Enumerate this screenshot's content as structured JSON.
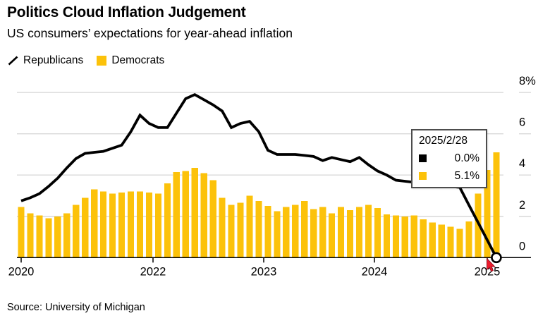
{
  "header": {
    "title": "Politics Cloud Inflation Judgement",
    "subtitle": "US consumers’ expectations for year-ahead inflation"
  },
  "legend": [
    {
      "label": "Republicans",
      "marker": "line-stroke",
      "color": "#000000"
    },
    {
      "label": "Democrats",
      "marker": "square",
      "color": "#FCC20A"
    }
  ],
  "chart_data": {
    "type": "combo",
    "title": "Politics Cloud Inflation Judgement",
    "subtitle": "US consumers’ expectations for year-ahead inflation",
    "ylabel": "",
    "xlabel": "",
    "ylim": [
      0,
      8
    ],
    "grid": "horizontal",
    "y_axis": {
      "side": "right",
      "ticks": [
        {
          "label": "8%",
          "value": 8
        },
        {
          "label": "6",
          "value": 6
        },
        {
          "label": "4",
          "value": 4
        },
        {
          "label": "2",
          "value": 2
        },
        {
          "label": "0",
          "value": 0
        }
      ]
    },
    "x_axis": {
      "tick_labels": [
        "2020",
        "2022",
        "2023",
        "2024",
        "2025"
      ]
    },
    "series": [
      {
        "name": "Democrats",
        "type": "bar",
        "color": "#FCC20A",
        "values": [
          2.45,
          2.15,
          2.05,
          1.9,
          2.0,
          2.15,
          2.55,
          2.9,
          3.3,
          3.2,
          3.1,
          3.15,
          3.2,
          3.2,
          3.15,
          3.1,
          3.6,
          4.15,
          4.2,
          4.35,
          4.1,
          3.75,
          2.9,
          2.55,
          2.65,
          3.0,
          2.75,
          2.5,
          2.25,
          2.45,
          2.55,
          2.75,
          2.35,
          2.45,
          2.15,
          2.45,
          2.3,
          2.45,
          2.55,
          2.4,
          2.1,
          2.05,
          2.0,
          2.05,
          1.85,
          1.7,
          1.6,
          1.5,
          1.4,
          1.75,
          3.1,
          4.25,
          5.1
        ]
      },
      {
        "name": "Republicans",
        "type": "line",
        "color": "#000000",
        "values": [
          2.75,
          2.9,
          3.1,
          3.45,
          3.85,
          4.35,
          4.8,
          5.05,
          5.1,
          5.15,
          5.3,
          5.45,
          6.1,
          6.9,
          6.5,
          6.3,
          6.3,
          7.0,
          7.7,
          7.9,
          7.65,
          7.4,
          7.1,
          6.3,
          6.5,
          6.6,
          6.1,
          5.2,
          5.0,
          5.0,
          5.0,
          4.95,
          4.9,
          4.7,
          4.85,
          4.75,
          4.65,
          4.85,
          4.5,
          4.2,
          4.0,
          3.75,
          3.7,
          3.65,
          3.6,
          3.55,
          3.5,
          3.45,
          3.4,
          2.55,
          1.7,
          0.85,
          0.0
        ]
      }
    ],
    "end_marker": {
      "series": "Republicans",
      "shape": "open-circle",
      "value": 0.0
    }
  },
  "tooltip": {
    "date": "2025/2/28",
    "rows": [
      {
        "series": "Republicans",
        "color": "#000000",
        "value": "0.0%"
      },
      {
        "series": "Democrats",
        "color": "#FCC20A",
        "value": "5.1%"
      }
    ]
  },
  "source": "Source: University of Michigan"
}
